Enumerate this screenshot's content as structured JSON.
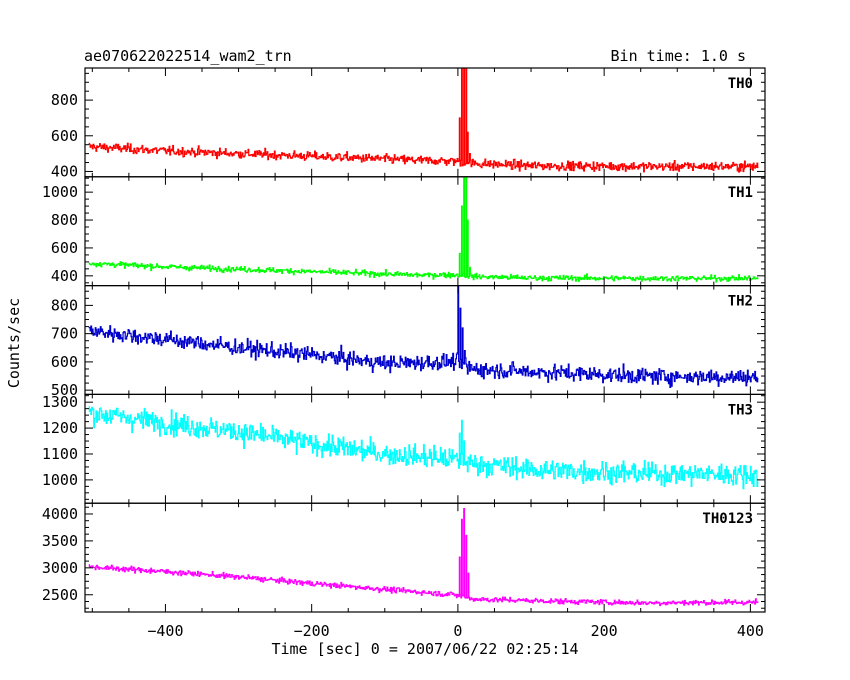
{
  "chart_data": {
    "type": "line",
    "title_left": "ae070622022514_wam2_trn",
    "title_right": "Bin time: 1.0 s",
    "xlabel": "Time [sec] 0 = 2007/06/22 02:25:14",
    "ylabel": "Counts/sec",
    "xlim": [
      -510,
      420
    ],
    "x_ticks": [
      -400,
      -200,
      0,
      200,
      400
    ],
    "x_tick_labels": [
      "−400",
      "−200",
      "0",
      "200",
      "400"
    ],
    "bin_time_s": 1.0,
    "x_start": -505,
    "x_end": 410,
    "grid": false,
    "panels": [
      {
        "name": "TH0",
        "color": "#ff0000",
        "ylim": [
          370,
          980
        ],
        "yticks": [
          400,
          600,
          800
        ],
        "baseline": [
          [
            -505,
            540
          ],
          [
            -400,
            515
          ],
          [
            -200,
            485
          ],
          [
            -50,
            462
          ],
          [
            -5,
            458
          ],
          [
            20,
            445
          ],
          [
            100,
            432
          ],
          [
            250,
            428
          ],
          [
            410,
            428
          ]
        ],
        "noise_sigma": 18,
        "spike": [
          [
            2,
            700
          ],
          [
            5,
            980
          ],
          [
            8,
            980
          ],
          [
            11,
            980
          ],
          [
            13,
            620
          ],
          [
            16,
            500
          ]
        ]
      },
      {
        "name": "TH1",
        "color": "#00ff00",
        "ylim": [
          330,
          1110
        ],
        "yticks": [
          400,
          600,
          800,
          1000
        ],
        "baseline": [
          [
            -505,
            490
          ],
          [
            -400,
            465
          ],
          [
            -200,
            430
          ],
          [
            -50,
            405
          ],
          [
            -5,
            408
          ],
          [
            20,
            395
          ],
          [
            100,
            385
          ],
          [
            250,
            382
          ],
          [
            410,
            382
          ]
        ],
        "noise_sigma": 14,
        "spike": [
          [
            2,
            560
          ],
          [
            5,
            900
          ],
          [
            8,
            1110
          ],
          [
            11,
            1110
          ],
          [
            13,
            800
          ],
          [
            16,
            460
          ]
        ]
      },
      {
        "name": "TH2",
        "color": "#0000cc",
        "ylim": [
          485,
          870
        ],
        "yticks": [
          500,
          600,
          700,
          800
        ],
        "baseline": [
          [
            -505,
            710
          ],
          [
            -400,
            680
          ],
          [
            -300,
            650
          ],
          [
            -200,
            625
          ],
          [
            -100,
            595
          ],
          [
            -5,
            600
          ],
          [
            20,
            575
          ],
          [
            100,
            565
          ],
          [
            250,
            550
          ],
          [
            410,
            545
          ]
        ],
        "noise_sigma": 20,
        "spike": [
          [
            0,
            870
          ],
          [
            3,
            790
          ],
          [
            6,
            720
          ],
          [
            9,
            640
          ]
        ]
      },
      {
        "name": "TH3",
        "color": "#00ffff",
        "ylim": [
          910,
          1330
        ],
        "yticks": [
          1000,
          1100,
          1200,
          1300
        ],
        "baseline": [
          [
            -505,
            1260
          ],
          [
            -400,
            1220
          ],
          [
            -300,
            1185
          ],
          [
            -200,
            1140
          ],
          [
            -100,
            1100
          ],
          [
            -5,
            1080
          ],
          [
            20,
            1065
          ],
          [
            100,
            1040
          ],
          [
            250,
            1025
          ],
          [
            410,
            1020
          ]
        ],
        "noise_sigma": 30,
        "spike": [
          [
            2,
            1180
          ],
          [
            5,
            1230
          ],
          [
            8,
            1150
          ]
        ]
      },
      {
        "name": "TH0123",
        "color": "#ff00ff",
        "ylim": [
          2180,
          4200
        ],
        "yticks": [
          2500,
          3000,
          3500,
          4000
        ],
        "baseline": [
          [
            -505,
            3020
          ],
          [
            -400,
            2930
          ],
          [
            -300,
            2830
          ],
          [
            -200,
            2710
          ],
          [
            -100,
            2600
          ],
          [
            -5,
            2500
          ],
          [
            20,
            2420
          ],
          [
            100,
            2390
          ],
          [
            250,
            2350
          ],
          [
            410,
            2360
          ]
        ],
        "noise_sigma": 35,
        "spike": [
          [
            2,
            3200
          ],
          [
            5,
            3900
          ],
          [
            8,
            4100
          ],
          [
            11,
            3600
          ],
          [
            14,
            2900
          ]
        ]
      }
    ]
  }
}
